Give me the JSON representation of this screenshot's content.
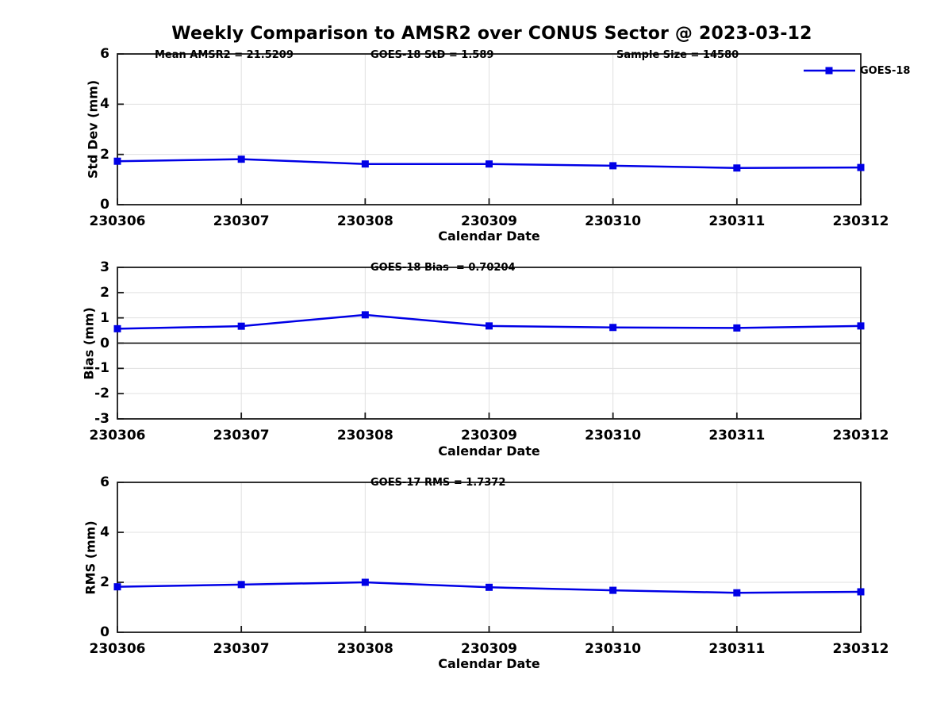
{
  "title": "Weekly Comparison to AMSR2 over CONUS Sector @ 2023-03-12",
  "legend": {
    "label": "GOES-18"
  },
  "colors": {
    "line": "#0000e6",
    "marker": "#0000e6",
    "grid": "#e0e0e0",
    "axis": "#1a1a1a",
    "zero_line": "#000000"
  },
  "chart_data": [
    {
      "type": "line",
      "name": "std-dev-panel",
      "categories": [
        "230306",
        "230307",
        "230308",
        "230309",
        "230310",
        "230311",
        "230312"
      ],
      "series": [
        {
          "name": "GOES-18",
          "values": [
            1.73,
            1.81,
            1.62,
            1.62,
            1.55,
            1.46,
            1.48
          ]
        }
      ],
      "ylabel": "Std Dev (mm)",
      "xlabel": "Calendar Date",
      "ylim": [
        0,
        6
      ],
      "yticks": [
        0,
        2,
        4,
        6
      ],
      "grid": true,
      "legend_position": "top-right-outside",
      "annotations": [
        "Mean AMSR2 = 21.5209",
        "GOES-18 StD = 1.589",
        "Sample Size = 14580"
      ]
    },
    {
      "type": "line",
      "name": "bias-panel",
      "categories": [
        "230306",
        "230307",
        "230308",
        "230309",
        "230310",
        "230311",
        "230312"
      ],
      "series": [
        {
          "name": "GOES-18",
          "values": [
            0.57,
            0.67,
            1.12,
            0.68,
            0.62,
            0.6,
            0.68
          ]
        }
      ],
      "ylabel": "Bias (mm)",
      "xlabel": "Calendar Date",
      "ylim": [
        -3,
        3
      ],
      "yticks": [
        -3,
        -2,
        -1,
        0,
        1,
        2,
        3
      ],
      "grid": true,
      "zero_line": true,
      "annotations": [
        "GOES-18 Bias  = 0.70204"
      ]
    },
    {
      "type": "line",
      "name": "rms-panel",
      "categories": [
        "230306",
        "230307",
        "230308",
        "230309",
        "230310",
        "230311",
        "230312"
      ],
      "series": [
        {
          "name": "GOES-18",
          "values": [
            1.82,
            1.91,
            2.0,
            1.8,
            1.68,
            1.58,
            1.62
          ]
        }
      ],
      "ylabel": "RMS (mm)",
      "xlabel": "Calendar Date",
      "ylim": [
        0,
        6
      ],
      "yticks": [
        0,
        2,
        4,
        6
      ],
      "grid": true,
      "annotations": [
        "GOES-17 RMS = 1.7372"
      ]
    }
  ]
}
